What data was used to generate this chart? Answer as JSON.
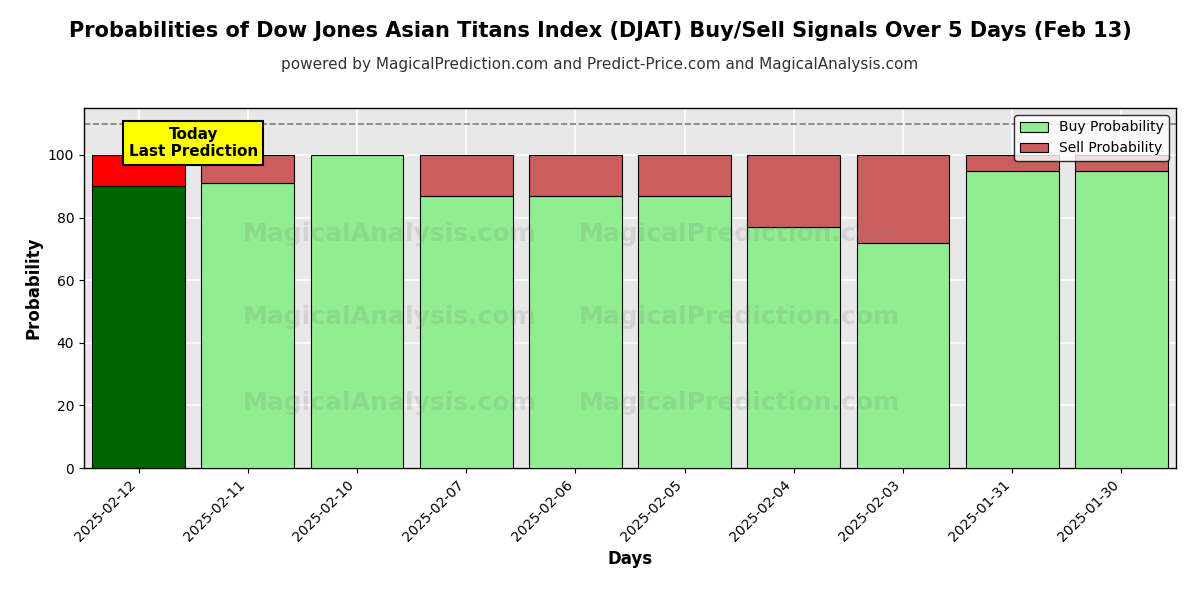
{
  "title": "Probabilities of Dow Jones Asian Titans Index (DJAT) Buy/Sell Signals Over 5 Days (Feb 13)",
  "subtitle": "powered by MagicalPrediction.com and Predict-Price.com and MagicalAnalysis.com",
  "xlabel": "Days",
  "ylabel": "Probability",
  "categories": [
    "2025-02-12",
    "2025-02-11",
    "2025-02-10",
    "2025-02-07",
    "2025-02-06",
    "2025-02-05",
    "2025-02-04",
    "2025-02-03",
    "2025-01-31",
    "2025-01-30"
  ],
  "buy_values": [
    90,
    91,
    100,
    87,
    87,
    87,
    77,
    72,
    95,
    95
  ],
  "sell_values": [
    10,
    9,
    0,
    13,
    13,
    13,
    23,
    28,
    5,
    5
  ],
  "today_buy_color": "#006400",
  "today_sell_color": "#FF0000",
  "buy_color": "#90EE90",
  "sell_color": "#CD5C5C",
  "today_annotation": "Today\nLast Prediction",
  "today_annotation_bg": "#FFFF00",
  "dashed_line_y": 110,
  "ylim": [
    0,
    115
  ],
  "yticks": [
    0,
    20,
    40,
    60,
    80,
    100
  ],
  "legend_buy_label": "Buy Probability",
  "legend_sell_label": "Sell Probability",
  "bar_edgecolor": "#000000",
  "grid_color": "#ffffff",
  "plot_bg_color": "#e8e8e8",
  "title_fontsize": 15,
  "subtitle_fontsize": 11,
  "axis_label_fontsize": 12,
  "tick_fontsize": 10
}
